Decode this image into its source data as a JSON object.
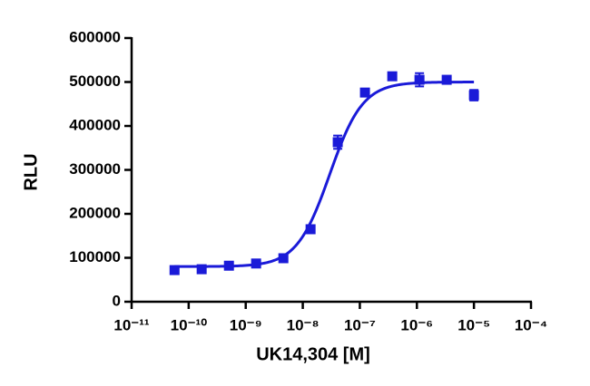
{
  "chart_data": {
    "type": "scatter",
    "x_label": "UK14,304 [M]",
    "y_label": "RLU",
    "xscale": "log",
    "xlim": [
      1e-11,
      0.0001
    ],
    "xticks": [
      {
        "value": 1e-11,
        "label": "10⁻¹¹"
      },
      {
        "value": 1e-10,
        "label": "10⁻¹⁰"
      },
      {
        "value": 1e-09,
        "label": "10⁻⁹"
      },
      {
        "value": 1e-08,
        "label": "10⁻⁸"
      },
      {
        "value": 1e-07,
        "label": "10⁻⁷"
      },
      {
        "value": 1e-06,
        "label": "10⁻⁶"
      },
      {
        "value": 1e-05,
        "label": "10⁻⁵"
      },
      {
        "value": 0.0001,
        "label": "10⁻⁴"
      }
    ],
    "ylim": [
      0,
      600000
    ],
    "yticks": [
      0,
      100000,
      200000,
      300000,
      400000,
      500000,
      600000
    ],
    "color": "#1a1ad8",
    "x": [
      5.65e-11,
      1.69e-10,
      5.08e-10,
      1.52e-09,
      4.57e-09,
      1.37e-08,
      4.1e-08,
      1.23e-07,
      3.7e-07,
      1.11e-06,
      3.33e-06,
      1e-05
    ],
    "values": [
      72000,
      74000,
      82000,
      87000,
      99000,
      165000,
      363000,
      476000,
      513000,
      505000,
      505000,
      470000
    ],
    "errors": [
      3000,
      3000,
      3000,
      3000,
      3000,
      6000,
      15000,
      5000,
      5000,
      15000,
      8000,
      12000
    ],
    "fit": {
      "bottom": 80000,
      "top": 500000,
      "ec50": 2.97e-08,
      "hill": 1.5
    }
  }
}
